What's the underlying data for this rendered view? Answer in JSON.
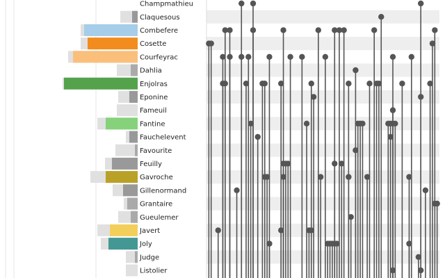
{
  "chart_data": {
    "type": "matrix",
    "rows": [
      {
        "name": "Champmathieu",
        "color": "#aaaaaa",
        "bar_gray": 0,
        "bar_color": 0,
        "links": [
          0.15,
          0.2,
          0.92
        ]
      },
      {
        "name": "Claquesous",
        "color": "#999999",
        "bar_gray": 25,
        "bar_color": 8,
        "links": [
          0.75
        ]
      },
      {
        "name": "Combefere",
        "color": "#a6cde9",
        "bar_gray": 82,
        "bar_color": 77,
        "links": [
          0.08,
          0.1,
          0.2,
          0.33,
          0.48,
          0.55,
          0.57,
          0.59,
          0.72,
          0.98
        ]
      },
      {
        "name": "Cosette",
        "color": "#f28c1e",
        "bar_gray": 82,
        "bar_color": 72,
        "links": [
          0.01,
          0.02,
          0.97
        ]
      },
      {
        "name": "Courfeyrac",
        "color": "#fbbf7c",
        "bar_gray": 100,
        "bar_color": 93,
        "links": [
          0.07,
          0.1,
          0.15,
          0.18,
          0.27,
          0.36,
          0.41,
          0.51,
          0.8,
          0.88
        ]
      },
      {
        "name": "Dahlia",
        "color": "#aaaaaa",
        "bar_gray": 30,
        "bar_color": 10,
        "links": [
          0.64
        ]
      },
      {
        "name": "Enjolras",
        "color": "#54a24b",
        "bar_gray": 108,
        "bar_color": 106,
        "links": [
          0.07,
          0.08,
          0.17,
          0.24,
          0.25,
          0.32,
          0.45,
          0.61,
          0.7,
          0.73,
          0.74,
          0.84,
          0.96
        ]
      },
      {
        "name": "Eponine",
        "color": "#999999",
        "bar_gray": 28,
        "bar_color": 12,
        "links": [
          0.46,
          0.92
        ]
      },
      {
        "name": "Fameuil",
        "color": "#aaaaaa",
        "bar_gray": 30,
        "bar_color": 0,
        "links": [
          0.8
        ]
      },
      {
        "name": "Fantine",
        "color": "#85d27a",
        "bar_gray": 58,
        "bar_color": 46,
        "links": [
          0.19,
          0.43,
          0.65,
          0.66,
          0.67,
          0.78,
          0.79,
          0.8,
          0.81
        ]
      },
      {
        "name": "Fauchelevent",
        "color": "#999999",
        "bar_gray": 17,
        "bar_color": 12,
        "links": [
          0.22,
          0.79
        ]
      },
      {
        "name": "Favourite",
        "color": "#aaaaaa",
        "bar_gray": 32,
        "bar_color": 4,
        "links": [
          0.64
        ]
      },
      {
        "name": "Feuilly",
        "color": "#999999",
        "bar_gray": 47,
        "bar_color": 37,
        "links": [
          0.33,
          0.34,
          0.35,
          0.55,
          0.58
        ]
      },
      {
        "name": "Gavroche",
        "color": "#b9a128",
        "bar_gray": 68,
        "bar_color": 46,
        "links": [
          0.25,
          0.26,
          0.33,
          0.49,
          0.61,
          0.69,
          0.87
        ]
      },
      {
        "name": "Gillenormand",
        "color": "#999999",
        "bar_gray": 36,
        "bar_color": 21,
        "links": [
          0.13,
          0.94
        ]
      },
      {
        "name": "Grantaire",
        "color": "#aaaaaa",
        "bar_gray": 20,
        "bar_color": 15,
        "links": [
          0.98,
          0.99
        ]
      },
      {
        "name": "Gueulemer",
        "color": "#aaaaaa",
        "bar_gray": 28,
        "bar_color": 10,
        "links": [
          0.62
        ]
      },
      {
        "name": "Javert",
        "color": "#f2cf5b",
        "bar_gray": 58,
        "bar_color": 40,
        "links": [
          0.05,
          0.32,
          0.44,
          0.45
        ]
      },
      {
        "name": "Joly",
        "color": "#439894",
        "bar_gray": 53,
        "bar_color": 42,
        "links": [
          0.27,
          0.52,
          0.53,
          0.54,
          0.55,
          0.56,
          0.87
        ]
      },
      {
        "name": "Judge",
        "color": "#aaaaaa",
        "bar_gray": 17,
        "bar_color": 4,
        "links": [
          0.91
        ]
      },
      {
        "name": "Listolier",
        "color": "#aaaaaa",
        "bar_gray": 17,
        "bar_color": 0,
        "links": [
          0.8,
          0.92
        ]
      }
    ],
    "bar_background": "#e0e0e0",
    "band_color": "#eeeeee",
    "link_color": "#555555"
  }
}
